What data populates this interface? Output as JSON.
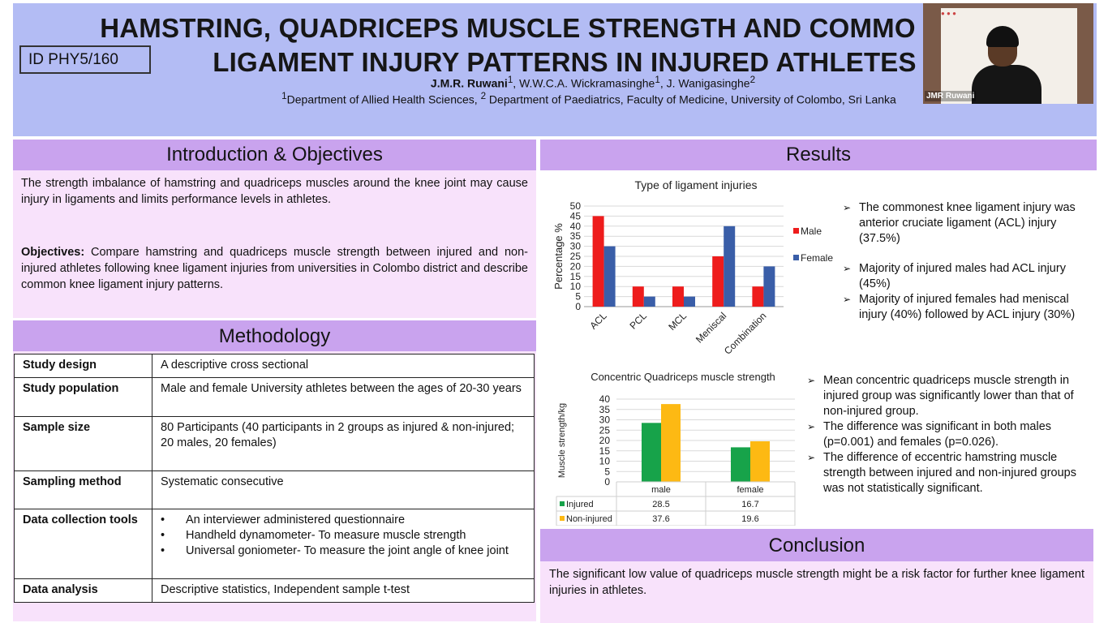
{
  "header": {
    "title_line1": "HAMSTRING, QUADRICEPS MUSCLE STRENGTH AND COMMO",
    "title_line2": "LIGAMENT INJURY PATTERNS IN INJURED ATHLETES",
    "id": "ID PHY5/160",
    "author1": "J.M.R. Ruwani",
    "author1_sup": "1",
    "author2": ", W.W.C.A. Wickramasinghe",
    "author2_sup": "1",
    "author3": ", J. Wanigasinghe",
    "author3_sup": "2",
    "affil_sup1": "1",
    "affil_text1": "Department of Allied Health Sciences, ",
    "affil_sup2": "2",
    "affil_text2": " Department of Paediatrics, Faculty of Medicine, University of Colombo, Sri Lanka"
  },
  "video": {
    "name": "JMR Ruwani"
  },
  "introduction": {
    "heading": "Introduction & Objectives",
    "text": "The strength imbalance of hamstring and quadriceps muscles around the knee joint may cause injury in ligaments and limits performance levels in athletes.",
    "objectives_label": "Objectives:",
    "objectives_text": " Compare hamstring and quadriceps muscle strength between injured and non-injured athletes following knee ligament injuries from universities in Colombo district and describe common knee ligament injury patterns."
  },
  "methodology": {
    "heading": "Methodology",
    "rows": [
      {
        "key": "Study design",
        "value": "A descriptive cross sectional"
      },
      {
        "key": "Study population",
        "value": "Male and female University athletes between the ages of 20-30 years"
      },
      {
        "key": "Sample size",
        "value": "80 Participants (40 participants in 2 groups as injured & non-injured; 20 males, 20 females)"
      },
      {
        "key": "Sampling method",
        "value": "Systematic consecutive"
      },
      {
        "key": "Data collection tools",
        "items": [
          "An interviewer administered questionnaire",
          "Handheld dynamometer- To measure muscle strength",
          "Universal goniometer- To measure the joint angle of knee joint"
        ]
      },
      {
        "key": "Data analysis",
        "value": "Descriptive statistics, Independent sample t-test"
      }
    ]
  },
  "results": {
    "heading": "Results",
    "bullets1": [
      "The commonest knee ligament injury was anterior cruciate ligament (ACL) injury (37.5%)",
      "Majority of injured males had ACL injury (45%)",
      "Majority of injured females had meniscal injury (40%) followed by ACL injury (30%)"
    ],
    "bullets2": [
      "Mean concentric quadriceps muscle strength in injured group was significantly lower than that of non-injured group.",
      "The difference was significant in both males (p=0.001) and females (p=0.026).",
      "The difference of eccentric hamstring muscle strength between injured and non-injured groups was not statistically significant."
    ]
  },
  "conclusion": {
    "heading": "Conclusion",
    "text": "The significant low value of quadriceps muscle strength might be a risk factor for further knee ligament injuries in athletes."
  },
  "colors": {
    "male": "#ee1c1c",
    "female": "#3a5ea8",
    "injured": "#17a34a",
    "noninjured": "#fdb913"
  },
  "chart_data": [
    {
      "type": "bar",
      "title": "Type of ligament injuries",
      "ylabel": "Percentage %",
      "xlabel": "",
      "categories": [
        "ACL",
        "PCL",
        "MCL",
        "Meniscal",
        "Combination"
      ],
      "series": [
        {
          "name": "Male",
          "values": [
            45,
            10,
            10,
            25,
            10
          ]
        },
        {
          "name": "Female",
          "values": [
            30,
            5,
            5,
            40,
            20
          ]
        }
      ],
      "ylim": [
        0,
        50
      ],
      "yticks": [
        "0",
        "5",
        "10",
        "15",
        "20",
        "25",
        "30",
        "35",
        "40",
        "45",
        "50"
      ],
      "grid": true,
      "legend": "right"
    },
    {
      "type": "bar",
      "title": "Concentric Quadriceps muscle strength",
      "ylabel": "Muscle strength/kg",
      "xlabel": "",
      "categories": [
        "male",
        "female"
      ],
      "series": [
        {
          "name": "Injured",
          "values": [
            28.5,
            16.7
          ]
        },
        {
          "name": "Non-injured",
          "values": [
            37.6,
            19.6
          ]
        }
      ],
      "value_labels": [
        [
          "28.5",
          "16.7"
        ],
        [
          "37.6",
          "19.6"
        ]
      ],
      "ylim": [
        0,
        40
      ],
      "yticks": [
        "0",
        "5",
        "10",
        "15",
        "20",
        "25",
        "30",
        "35",
        "40"
      ],
      "grid": true,
      "legend": "data table"
    }
  ]
}
